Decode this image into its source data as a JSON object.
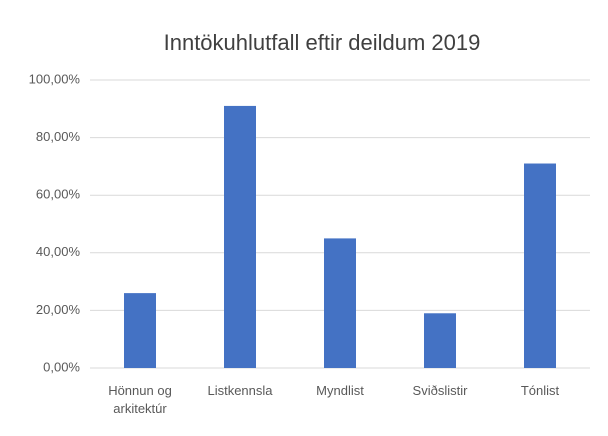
{
  "chart_data": {
    "type": "bar",
    "title": "Inntökuhlutfall eftir deildum 2019",
    "categories": [
      "Hönnun og arkitektúr",
      "Listkennsla",
      "Myndlist",
      "Sviðslistir",
      "Tónlist"
    ],
    "values": [
      26,
      91,
      45,
      19,
      71
    ],
    "color": "#4472c4",
    "ylim": [
      0,
      100
    ],
    "yticks": [
      {
        "value": 0,
        "label": "0,00%"
      },
      {
        "value": 20,
        "label": "20,00%"
      },
      {
        "value": 40,
        "label": "40,00%"
      },
      {
        "value": 60,
        "label": "60,00%"
      },
      {
        "value": 80,
        "label": "80,00%"
      },
      {
        "value": 100,
        "label": "100,00%"
      }
    ],
    "grid": true
  }
}
